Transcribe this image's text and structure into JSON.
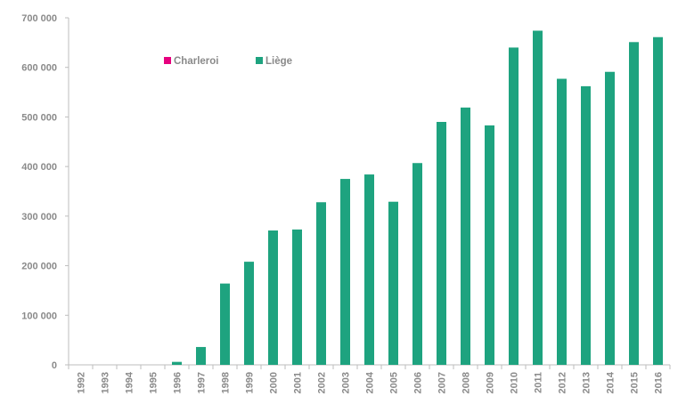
{
  "chart_data": {
    "type": "bar",
    "title": "",
    "xlabel": "",
    "ylabel": "",
    "ylim": [
      0,
      700000
    ],
    "yticks": [
      0,
      100000,
      200000,
      300000,
      400000,
      500000,
      600000,
      700000
    ],
    "ytick_labels": [
      "0",
      "100 000",
      "200 000",
      "300 000",
      "400 000",
      "500 000",
      "600 000",
      "700 000"
    ],
    "grid": false,
    "legend_position": "top-left",
    "categories": [
      "1992",
      "1993",
      "1994",
      "1995",
      "1996",
      "1997",
      "1998",
      "1999",
      "2000",
      "2001",
      "2002",
      "2003",
      "2004",
      "2005",
      "2006",
      "2007",
      "2008",
      "2009",
      "2010",
      "2011",
      "2012",
      "2013",
      "2014",
      "2015",
      "2016"
    ],
    "series": [
      {
        "name": "Charleroi",
        "color": "#e6007e",
        "values": [
          0,
          0,
          0,
          0,
          0,
          0,
          0,
          0,
          0,
          0,
          0,
          0,
          0,
          0,
          0,
          0,
          0,
          0,
          0,
          0,
          0,
          0,
          0,
          0,
          0
        ]
      },
      {
        "name": "Liège",
        "color": "#1ea37f",
        "values": [
          0,
          0,
          0,
          0,
          6000,
          36000,
          164000,
          208000,
          271000,
          273000,
          328000,
          375000,
          384000,
          329000,
          407000,
          490000,
          519000,
          483000,
          640000,
          674000,
          577000,
          562000,
          591000,
          651000,
          661000
        ]
      }
    ]
  }
}
